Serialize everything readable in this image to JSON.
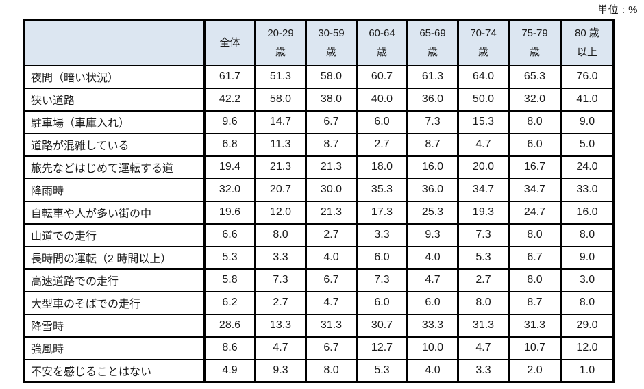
{
  "unit_label": "単位 : %",
  "chart_data": {
    "type": "table",
    "title": "",
    "unit": "%",
    "row_header": "",
    "columns": [
      "全体",
      "20-29歳",
      "30-59歳",
      "60-64歳",
      "65-69歳",
      "70-74歳",
      "75-79歳",
      "80歳以上"
    ],
    "column_lines": [
      [
        "全体"
      ],
      [
        "20-29",
        "歳"
      ],
      [
        "30-59",
        "歳"
      ],
      [
        "60-64",
        "歳"
      ],
      [
        "65-69",
        "歳"
      ],
      [
        "70-74",
        "歳"
      ],
      [
        "75-79",
        "歳"
      ],
      [
        "80 歳",
        "以上"
      ]
    ],
    "rows": [
      {
        "label": "夜間（暗い状況）",
        "values": [
          "61.7",
          "51.3",
          "58.0",
          "60.7",
          "61.3",
          "64.0",
          "65.3",
          "76.0"
        ]
      },
      {
        "label": "狭い道路",
        "values": [
          "42.2",
          "58.0",
          "38.0",
          "40.0",
          "36.0",
          "50.0",
          "32.0",
          "41.0"
        ]
      },
      {
        "label": "駐車場（車庫入れ）",
        "values": [
          "9.6",
          "14.7",
          "6.7",
          "6.0",
          "7.3",
          "15.3",
          "8.0",
          "9.0"
        ]
      },
      {
        "label": "道路が混雑している",
        "values": [
          "6.8",
          "11.3",
          "8.7",
          "2.7",
          "8.7",
          "4.7",
          "6.0",
          "5.0"
        ]
      },
      {
        "label": "旅先などはじめて運転する道",
        "values": [
          "19.4",
          "21.3",
          "21.3",
          "18.0",
          "16.0",
          "20.0",
          "16.7",
          "24.0"
        ]
      },
      {
        "label": "降雨時",
        "values": [
          "32.0",
          "20.7",
          "30.0",
          "35.3",
          "36.0",
          "34.7",
          "34.7",
          "33.0"
        ]
      },
      {
        "label": "自転車や人が多い街の中",
        "values": [
          "19.6",
          "12.0",
          "21.3",
          "17.3",
          "25.3",
          "19.3",
          "24.7",
          "16.0"
        ]
      },
      {
        "label": "山道での走行",
        "values": [
          "6.6",
          "8.0",
          "2.7",
          "3.3",
          "9.3",
          "7.3",
          "8.0",
          "8.0"
        ]
      },
      {
        "label": "長時間の運転（2 時間以上）",
        "values": [
          "5.3",
          "3.3",
          "4.0",
          "6.0",
          "4.0",
          "5.3",
          "6.7",
          "9.0"
        ]
      },
      {
        "label": "高速道路での走行",
        "values": [
          "5.8",
          "7.3",
          "6.7",
          "7.3",
          "4.7",
          "2.7",
          "8.0",
          "3.0"
        ]
      },
      {
        "label": "大型車のそばでの走行",
        "values": [
          "6.2",
          "2.7",
          "4.7",
          "6.0",
          "6.0",
          "8.0",
          "8.7",
          "8.0"
        ]
      },
      {
        "label": "降雪時",
        "values": [
          "28.6",
          "13.3",
          "31.3",
          "30.7",
          "33.3",
          "31.3",
          "31.3",
          "29.0"
        ]
      },
      {
        "label": "強風時",
        "values": [
          "8.6",
          "4.7",
          "6.7",
          "12.7",
          "10.0",
          "4.7",
          "10.7",
          "12.0"
        ]
      },
      {
        "label": "不安を感じることはない",
        "values": [
          "4.9",
          "9.3",
          "8.0",
          "5.3",
          "4.0",
          "3.3",
          "2.0",
          "1.0"
        ]
      }
    ]
  },
  "colors": {
    "header_bg": "#dce6f1",
    "border": "#000000",
    "text": "#1a1a1a"
  }
}
